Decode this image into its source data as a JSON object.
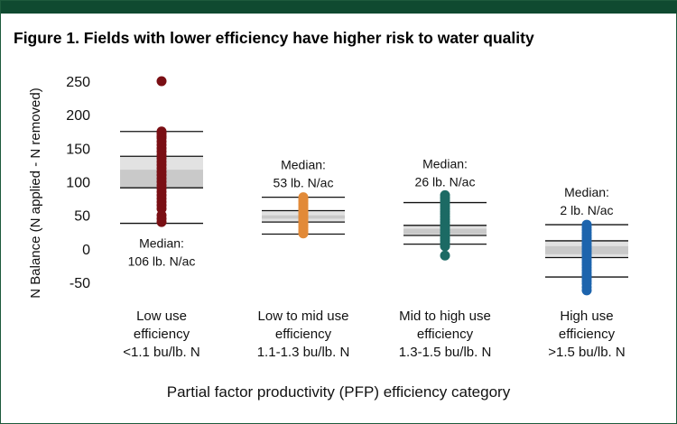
{
  "title": "Figure 1. Fields with lower efficiency have higher risk to water quality",
  "chart_data": {
    "type": "scatter",
    "title": "Figure 1. Fields with lower efficiency have higher risk to water quality",
    "xlabel": "Partial factor productivity (PFP) efficiency category",
    "ylabel": "N Balance (N applied - N removed)",
    "ylim": [
      -50,
      250
    ],
    "yticks": [
      "250",
      "200",
      "150",
      "100",
      "50",
      "0",
      "-50"
    ],
    "grid": false,
    "categories": [
      {
        "label": [
          "Low use",
          "efficiency",
          "<1.1 bu/lb. N"
        ],
        "color": "#7a0f14",
        "median_label": [
          "Median:",
          "106 lb. N/ac"
        ],
        "median_label_position": "below",
        "lines": [
          175,
          138,
          91,
          38
        ],
        "box_outer": [
          138,
          91
        ],
        "box_inner": [
          118,
          91
        ],
        "points": [
          250,
          175,
          172,
          168,
          165,
          160,
          155,
          150,
          145,
          140,
          135,
          130,
          125,
          120,
          115,
          110,
          105,
          100,
          95,
          90,
          85,
          80,
          75,
          70,
          65,
          60,
          50,
          45,
          40
        ]
      },
      {
        "label": [
          "Low to mid use",
          "efficiency",
          "1.1-1.3 bu/lb. N"
        ],
        "color": "#e28a38",
        "median_label": [
          "Median:",
          "53 lb. N/ac"
        ],
        "median_label_position": "above",
        "lines": [
          77,
          57,
          40,
          22
        ],
        "box_outer": [
          57,
          40
        ],
        "box_inner": [
          50,
          45
        ],
        "points": [
          77,
          74,
          71,
          68,
          65,
          62,
          59,
          56,
          53,
          50,
          47,
          44,
          41,
          38,
          35,
          32,
          29,
          26,
          23
        ]
      },
      {
        "label": [
          "Mid to high use",
          "efficiency",
          "1.3-1.5 bu/lb. N"
        ],
        "color": "#1c6a64",
        "median_label": [
          "Median:",
          "26 lb. N/ac"
        ],
        "median_label_position": "above",
        "lines": [
          69,
          35,
          20,
          7
        ],
        "box_outer": [
          35,
          20
        ],
        "box_inner": [
          30,
          22
        ],
        "points": [
          80,
          76,
          72,
          68,
          64,
          60,
          56,
          52,
          48,
          44,
          40,
          36,
          32,
          28,
          24,
          20,
          16,
          12,
          8,
          4,
          -10
        ]
      },
      {
        "label": [
          "High use",
          "efficiency",
          ">1.5 bu/lb. N"
        ],
        "color": "#1d64ad",
        "median_label": [
          "Median:",
          "2 lb. N/ac"
        ],
        "median_label_position": "above",
        "lines": [
          36,
          12,
          -13,
          -42
        ],
        "box_outer": [
          12,
          -13
        ],
        "box_inner": [
          4,
          -8
        ],
        "points": [
          36,
          32,
          28,
          24,
          20,
          16,
          12,
          8,
          4,
          0,
          -4,
          -8,
          -12,
          -16,
          -20,
          -24,
          -28,
          -32,
          -36,
          -40,
          -44,
          -48,
          -52,
          -57,
          -62
        ]
      }
    ]
  }
}
